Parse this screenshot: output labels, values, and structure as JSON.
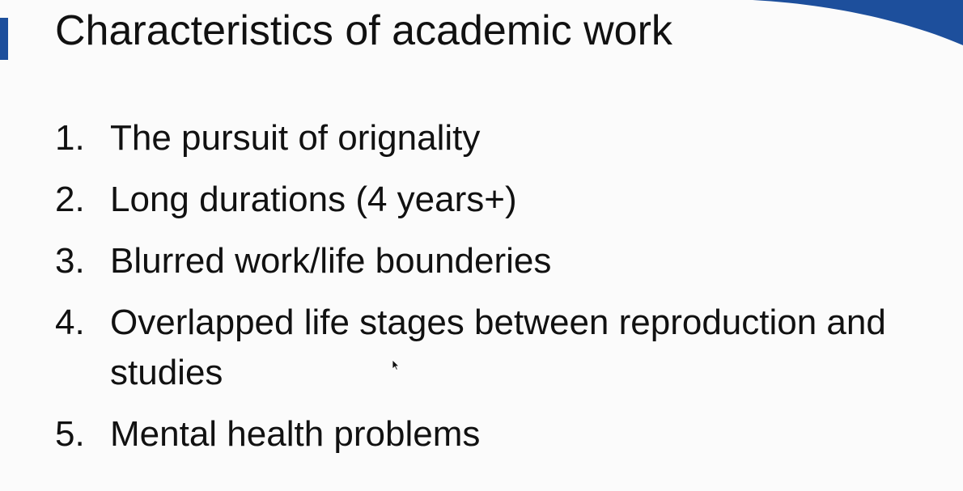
{
  "slide": {
    "title": "Characteristics of academic work",
    "items": [
      {
        "number": "1.",
        "text": "The pursuit of orignality"
      },
      {
        "number": "2.",
        "text": "Long durations (4 years+)"
      },
      {
        "number": "3.",
        "text": "Blurred work/life bounderies"
      },
      {
        "number": "4.",
        "text": "Overlapped life stages between reproduction and studies"
      },
      {
        "number": "5.",
        "text": "Mental health problems"
      }
    ]
  },
  "colors": {
    "accent": "#1d4f9c",
    "text": "#111111",
    "background": "#fbfbfb"
  },
  "icons": {
    "cursor": "mouse-pointer-icon"
  }
}
